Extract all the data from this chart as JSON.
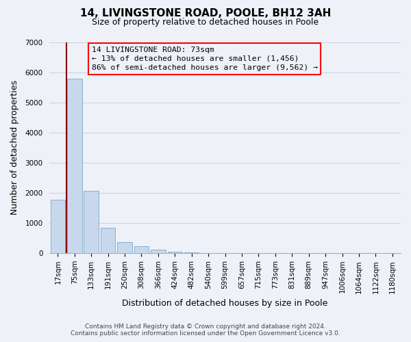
{
  "title": "14, LIVINGSTONE ROAD, POOLE, BH12 3AH",
  "subtitle": "Size of property relative to detached houses in Poole",
  "xlabel": "Distribution of detached houses by size in Poole",
  "ylabel": "Number of detached properties",
  "bin_labels": [
    "17sqm",
    "75sqm",
    "133sqm",
    "191sqm",
    "250sqm",
    "308sqm",
    "366sqm",
    "424sqm",
    "482sqm",
    "540sqm",
    "599sqm",
    "657sqm",
    "715sqm",
    "773sqm",
    "831sqm",
    "889sqm",
    "947sqm",
    "1006sqm",
    "1064sqm",
    "1122sqm",
    "1180sqm"
  ],
  "bar_heights": [
    1780,
    5780,
    2060,
    840,
    370,
    230,
    110,
    60,
    30,
    10,
    0,
    0,
    0,
    0,
    0,
    0,
    0,
    0,
    0,
    0,
    0
  ],
  "bar_color": "#c8d8ec",
  "bar_edge_color": "#8aaecc",
  "grid_color": "#c8d4e4",
  "background_color": "#eef2f8",
  "vline_color": "#8b0000",
  "vline_x": 0.5,
  "ylim": [
    0,
    7000
  ],
  "yticks": [
    0,
    1000,
    2000,
    3000,
    4000,
    5000,
    6000,
    7000
  ],
  "annotation_title": "14 LIVINGSTONE ROAD: 73sqm",
  "annotation_line1": "← 13% of detached houses are smaller (1,456)",
  "annotation_line2": "86% of semi-detached houses are larger (9,562) →",
  "footer_line1": "Contains HM Land Registry data © Crown copyright and database right 2024.",
  "footer_line2": "Contains public sector information licensed under the Open Government Licence v3.0.",
  "title_fontsize": 11,
  "subtitle_fontsize": 9,
  "xlabel_fontsize": 9,
  "ylabel_fontsize": 9,
  "tick_fontsize": 7.5,
  "footer_fontsize": 6.5
}
